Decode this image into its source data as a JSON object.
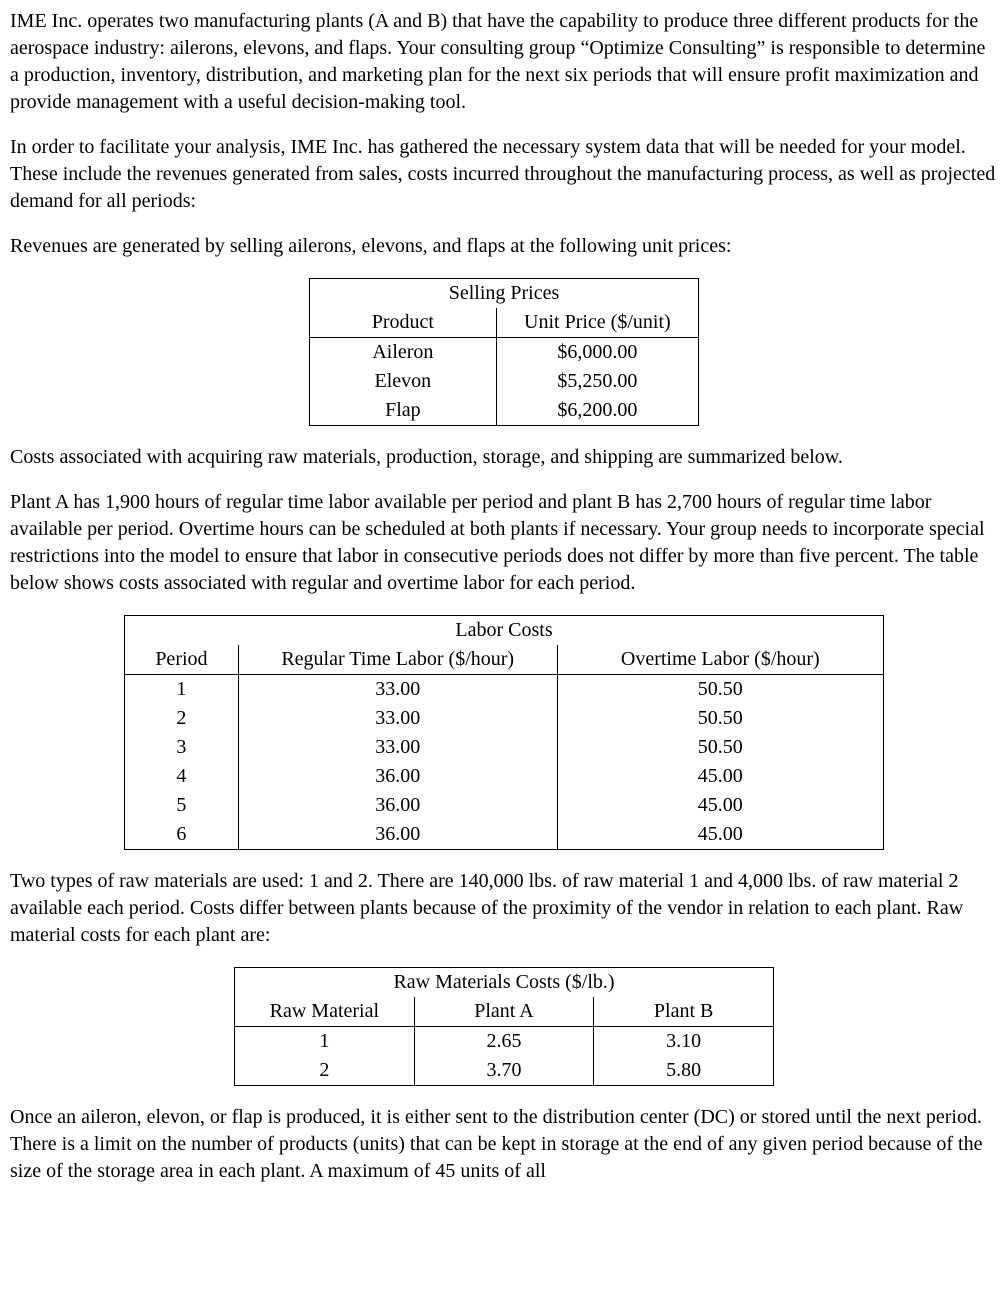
{
  "para1": "IME Inc. operates two manufacturing plants (A and B) that have the capability to produce three different products for the aerospace industry: ailerons, elevons, and flaps. Your consulting group “Optimize Consulting” is responsible to determine a production, inventory, distribution, and marketing plan for the next six periods that will ensure profit maximization and provide management with a useful decision-making tool.",
  "para2": "In order to facilitate your analysis, IME Inc. has gathered the necessary system data that will be needed for your model.  These include the revenues generated from sales, costs incurred throughout the manufacturing process, as well as projected demand for all periods:",
  "para3": "Revenues are generated by selling ailerons, elevons, and flaps at the following unit prices:",
  "table1": {
    "title": "Selling Prices",
    "headers": [
      "Product",
      "Unit Price ($/unit)"
    ],
    "rows": [
      [
        "Aileron",
        "$6,000.00"
      ],
      [
        "Elevon",
        "$5,250.00"
      ],
      [
        "Flap",
        "$6,200.00"
      ]
    ]
  },
  "para4": "Costs associated with acquiring raw materials, production, storage, and shipping are summarized below.",
  "para5": "Plant A has 1,900 hours of regular time labor available per period and plant B has 2,700 hours of regular time labor available per period.  Overtime hours can be scheduled at both plants if necessary.  Your group needs to incorporate special restrictions into the model to ensure that labor in consecutive periods does not differ by more than five percent.  The table below shows costs associated with regular and overtime labor for each period.",
  "table2": {
    "title": "Labor Costs",
    "headers": [
      "Period",
      "Regular Time Labor ($/hour)",
      "Overtime Labor ($/hour)"
    ],
    "rows": [
      [
        "1",
        "33.00",
        "50.50"
      ],
      [
        "2",
        "33.00",
        "50.50"
      ],
      [
        "3",
        "33.00",
        "50.50"
      ],
      [
        "4",
        "36.00",
        "45.00"
      ],
      [
        "5",
        "36.00",
        "45.00"
      ],
      [
        "6",
        "36.00",
        "45.00"
      ]
    ]
  },
  "para6": "Two types of raw materials are used: 1 and 2. There are 140,000 lbs. of raw material 1 and 4,000 lbs. of raw material 2 available each period.  Costs differ between plants because of the proximity of the vendor in relation to each plant.  Raw material costs for each plant are:",
  "table3": {
    "title": "Raw Materials Costs ($/lb.)",
    "headers": [
      "Raw Material",
      "Plant A",
      "Plant B"
    ],
    "rows": [
      [
        "1",
        "2.65",
        "3.10"
      ],
      [
        "2",
        "3.70",
        "5.80"
      ]
    ]
  },
  "para7": "Once an aileron, elevon, or flap is produced, it is either sent to the distribution center (DC) or stored until the next period.  There is a limit on the number of products (units) that can be kept in storage at the end of any given period because of the size of the storage area in each plant.  A maximum of 45 units of all"
}
